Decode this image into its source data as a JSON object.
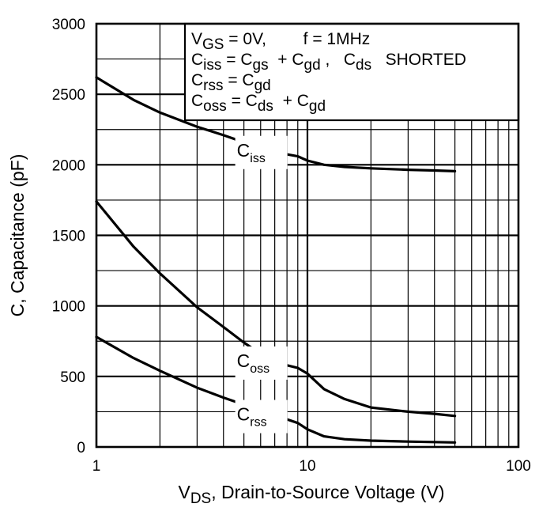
{
  "chart_data": {
    "type": "line",
    "x_scale": "log",
    "xlim": [
      1,
      100
    ],
    "ylim": [
      0,
      3000
    ],
    "x_ticks": [
      "1",
      "10",
      "100"
    ],
    "y_ticks": [
      "0",
      "500",
      "1000",
      "1500",
      "2000",
      "2500",
      "3000"
    ],
    "xlabel": {
      "main": "V",
      "sub": "DS",
      "rest": ", Drain-to-Source Voltage (V)"
    },
    "ylabel": "C, Capacitance (pF)",
    "grid": true,
    "legend_placement": "top-right",
    "legend_lines": [
      [
        {
          "t": "V"
        },
        {
          "t": "GS",
          "sub": true
        },
        {
          "t": " = 0V,        f = 1MHz"
        }
      ],
      [
        {
          "t": "C"
        },
        {
          "t": "iss",
          "sub": true
        },
        {
          "t": " = C"
        },
        {
          "t": "gs",
          "sub": true
        },
        {
          "t": "  + C"
        },
        {
          "t": "gd",
          "sub": true
        },
        {
          "t": " ,   C"
        },
        {
          "t": "ds",
          "sub": true
        },
        {
          "t": "   SHORTED"
        }
      ],
      [
        {
          "t": "C"
        },
        {
          "t": "rss",
          "sub": true
        },
        {
          "t": " = C"
        },
        {
          "t": "gd",
          "sub": true
        }
      ],
      [
        {
          "t": "C"
        },
        {
          "t": "oss",
          "sub": true
        },
        {
          "t": " = C"
        },
        {
          "t": "ds",
          "sub": true
        },
        {
          "t": "  + C"
        },
        {
          "t": "gd",
          "sub": true
        }
      ]
    ],
    "series": [
      {
        "name": "Ciss",
        "label_main": "C",
        "label_sub": "iss",
        "label_at": 7.5,
        "x": [
          1,
          1.5,
          2,
          3,
          4,
          5,
          6,
          7,
          9,
          10,
          12,
          15,
          20,
          30,
          40,
          50
        ],
        "y": [
          2620,
          2460,
          2370,
          2270,
          2210,
          2160,
          2120,
          2090,
          2060,
          2030,
          2000,
          1985,
          1975,
          1965,
          1960,
          1955
        ]
      },
      {
        "name": "Coss",
        "label_main": "C",
        "label_sub": "oss",
        "label_at": 7.5,
        "x": [
          1,
          1.5,
          2,
          3,
          4,
          5,
          6,
          7,
          9,
          10,
          12,
          15,
          20,
          30,
          40,
          50
        ],
        "y": [
          1740,
          1420,
          1230,
          990,
          850,
          740,
          660,
          600,
          560,
          520,
          410,
          340,
          280,
          250,
          235,
          220
        ]
      },
      {
        "name": "Crss",
        "label_main": "C",
        "label_sub": "rss",
        "label_at": 7.5,
        "x": [
          1,
          1.5,
          2,
          3,
          4,
          5,
          6,
          7,
          9,
          10,
          12,
          15,
          20,
          30,
          40,
          50
        ],
        "y": [
          780,
          630,
          540,
          420,
          350,
          300,
          255,
          225,
          170,
          125,
          75,
          55,
          45,
          38,
          35,
          32
        ]
      }
    ]
  }
}
